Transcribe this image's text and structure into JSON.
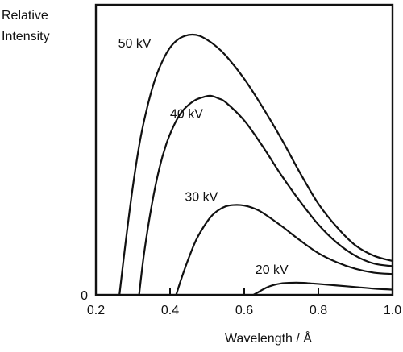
{
  "chart_data": {
    "type": "line",
    "ylabel_lines": [
      "Relative",
      "Intensity"
    ],
    "xlabel": "Wavelength / Å",
    "xlim": [
      0.2,
      1.0
    ],
    "ylim": [
      0,
      1
    ],
    "x_ticks": [
      {
        "value": 0.2,
        "label": "0.2"
      },
      {
        "value": 0.4,
        "label": "0.4"
      },
      {
        "value": 0.6,
        "label": "0.6"
      },
      {
        "value": 0.8,
        "label": "0.8"
      },
      {
        "value": 1.0,
        "label": "1.0"
      }
    ],
    "y_ticks": [
      {
        "value": 0,
        "label": "0"
      }
    ],
    "grid": false,
    "legend": "none",
    "series": [
      {
        "name": "50 kV",
        "label_at": [
          0.26,
          0.95
        ],
        "x": [
          0.2635,
          0.28,
          0.3,
          0.32,
          0.34,
          0.36,
          0.38,
          0.4,
          0.42,
          0.44,
          0.46,
          0.48,
          0.5,
          0.52,
          0.55,
          0.6,
          0.65,
          0.7,
          0.75,
          0.8,
          0.85,
          0.9,
          0.95,
          1.0
        ],
        "y": [
          0.0,
          0.2,
          0.42,
          0.6,
          0.73,
          0.83,
          0.9,
          0.95,
          0.98,
          0.995,
          1.0,
          0.995,
          0.98,
          0.96,
          0.92,
          0.83,
          0.72,
          0.6,
          0.47,
          0.35,
          0.26,
          0.19,
          0.15,
          0.13
        ]
      },
      {
        "name": "40 kV",
        "label_at": [
          0.4,
          0.68
        ],
        "x": [
          0.3165,
          0.33,
          0.35,
          0.37,
          0.39,
          0.41,
          0.43,
          0.45,
          0.47,
          0.49,
          0.51,
          0.53,
          0.55,
          0.6,
          0.65,
          0.7,
          0.75,
          0.8,
          0.85,
          0.9,
          0.95,
          1.0
        ],
        "y": [
          0.0,
          0.16,
          0.34,
          0.48,
          0.58,
          0.65,
          0.7,
          0.73,
          0.75,
          0.76,
          0.765,
          0.755,
          0.74,
          0.67,
          0.57,
          0.46,
          0.36,
          0.27,
          0.2,
          0.15,
          0.12,
          0.11
        ]
      },
      {
        "name": "30 kV",
        "label_at": [
          0.44,
          0.36
        ],
        "x": [
          0.4165,
          0.43,
          0.45,
          0.47,
          0.49,
          0.51,
          0.53,
          0.55,
          0.57,
          0.59,
          0.61,
          0.63,
          0.65,
          0.7,
          0.75,
          0.8,
          0.85,
          0.9,
          0.95,
          1.0
        ],
        "y": [
          0.0,
          0.06,
          0.14,
          0.21,
          0.26,
          0.3,
          0.325,
          0.34,
          0.345,
          0.345,
          0.34,
          0.33,
          0.315,
          0.265,
          0.21,
          0.16,
          0.125,
          0.1,
          0.085,
          0.08
        ]
      },
      {
        "name": "20 kV",
        "label_at": [
          0.63,
          0.08
        ],
        "x": [
          0.625,
          0.64,
          0.66,
          0.68,
          0.7,
          0.72,
          0.74,
          0.76,
          0.78,
          0.8,
          0.85,
          0.9,
          0.95,
          1.0
        ],
        "y": [
          0.0,
          0.012,
          0.028,
          0.038,
          0.044,
          0.046,
          0.047,
          0.046,
          0.044,
          0.042,
          0.036,
          0.03,
          0.024,
          0.02
        ]
      }
    ]
  }
}
